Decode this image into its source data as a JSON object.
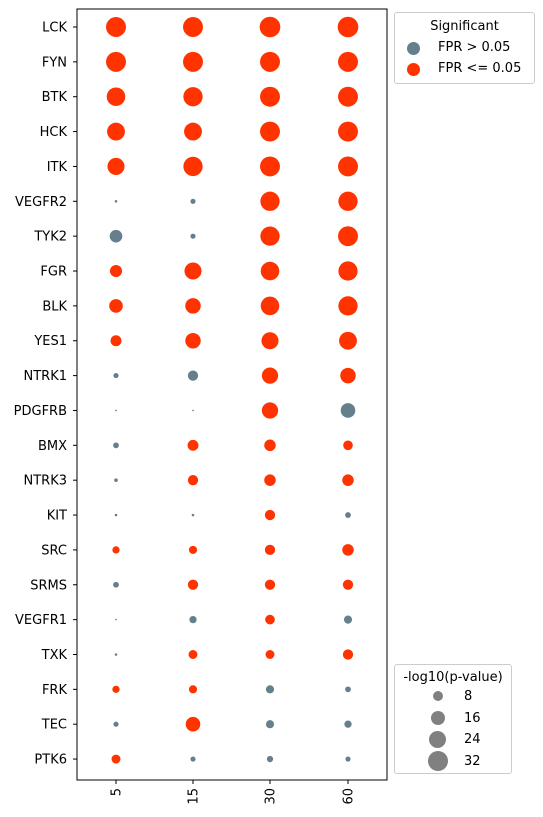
{
  "chart_data": {
    "type": "scatter",
    "title": "",
    "xlabel": "",
    "ylabel": "",
    "x_categories": [
      "5",
      "15",
      "30",
      "60"
    ],
    "y_categories": [
      "LCK",
      "FYN",
      "BTK",
      "HCK",
      "ITK",
      "VEGFR2",
      "TYK2",
      "FGR",
      "BLK",
      "YES1",
      "NTRK1",
      "PDGFRB",
      "BMX",
      "NTRK3",
      "KIT",
      "SRC",
      "SRMS",
      "VEGFR1",
      "TXK",
      "FRK",
      "TEC",
      "PTK6"
    ],
    "size_variable": "-log10(p-value)",
    "color_variable": "Significant",
    "colors": {
      "significant": "#ff3300",
      "not_significant": "#657f8c"
    },
    "points": [
      {
        "y": "LCK",
        "x": "5",
        "size": 30,
        "sig": true
      },
      {
        "y": "LCK",
        "x": "15",
        "size": 30,
        "sig": true
      },
      {
        "y": "LCK",
        "x": "30",
        "size": 32,
        "sig": true
      },
      {
        "y": "LCK",
        "x": "60",
        "size": 32,
        "sig": true
      },
      {
        "y": "FYN",
        "x": "5",
        "size": 30,
        "sig": true
      },
      {
        "y": "FYN",
        "x": "15",
        "size": 30,
        "sig": true
      },
      {
        "y": "FYN",
        "x": "30",
        "size": 30,
        "sig": true
      },
      {
        "y": "FYN",
        "x": "60",
        "size": 30,
        "sig": true
      },
      {
        "y": "BTK",
        "x": "5",
        "size": 26,
        "sig": true
      },
      {
        "y": "BTK",
        "x": "15",
        "size": 28,
        "sig": true
      },
      {
        "y": "BTK",
        "x": "30",
        "size": 30,
        "sig": true
      },
      {
        "y": "BTK",
        "x": "60",
        "size": 30,
        "sig": true
      },
      {
        "y": "HCK",
        "x": "5",
        "size": 24,
        "sig": true
      },
      {
        "y": "HCK",
        "x": "15",
        "size": 24,
        "sig": true
      },
      {
        "y": "HCK",
        "x": "30",
        "size": 30,
        "sig": true
      },
      {
        "y": "HCK",
        "x": "60",
        "size": 30,
        "sig": true
      },
      {
        "y": "ITK",
        "x": "5",
        "size": 22,
        "sig": true
      },
      {
        "y": "ITK",
        "x": "15",
        "size": 28,
        "sig": true
      },
      {
        "y": "ITK",
        "x": "30",
        "size": 30,
        "sig": true
      },
      {
        "y": "ITK",
        "x": "60",
        "size": 30,
        "sig": true
      },
      {
        "y": "VEGFR2",
        "x": "5",
        "size": 0.5,
        "sig": false
      },
      {
        "y": "VEGFR2",
        "x": "15",
        "size": 2,
        "sig": false
      },
      {
        "y": "VEGFR2",
        "x": "30",
        "size": 28,
        "sig": true
      },
      {
        "y": "VEGFR2",
        "x": "60",
        "size": 28,
        "sig": true
      },
      {
        "y": "TYK2",
        "x": "5",
        "size": 12,
        "sig": false
      },
      {
        "y": "TYK2",
        "x": "15",
        "size": 2,
        "sig": false
      },
      {
        "y": "TYK2",
        "x": "30",
        "size": 28,
        "sig": true
      },
      {
        "y": "TYK2",
        "x": "60",
        "size": 30,
        "sig": true
      },
      {
        "y": "FGR",
        "x": "5",
        "size": 11,
        "sig": true
      },
      {
        "y": "FGR",
        "x": "15",
        "size": 22,
        "sig": true
      },
      {
        "y": "FGR",
        "x": "30",
        "size": 26,
        "sig": true
      },
      {
        "y": "FGR",
        "x": "60",
        "size": 28,
        "sig": true
      },
      {
        "y": "BLK",
        "x": "5",
        "size": 14,
        "sig": true
      },
      {
        "y": "BLK",
        "x": "15",
        "size": 18,
        "sig": true
      },
      {
        "y": "BLK",
        "x": "30",
        "size": 26,
        "sig": true
      },
      {
        "y": "BLK",
        "x": "60",
        "size": 28,
        "sig": true
      },
      {
        "y": "YES1",
        "x": "5",
        "size": 9,
        "sig": true
      },
      {
        "y": "YES1",
        "x": "15",
        "size": 18,
        "sig": true
      },
      {
        "y": "YES1",
        "x": "30",
        "size": 22,
        "sig": true
      },
      {
        "y": "YES1",
        "x": "60",
        "size": 24,
        "sig": true
      },
      {
        "y": "NTRK1",
        "x": "5",
        "size": 2,
        "sig": false
      },
      {
        "y": "NTRK1",
        "x": "15",
        "size": 8,
        "sig": false
      },
      {
        "y": "NTRK1",
        "x": "30",
        "size": 20,
        "sig": true
      },
      {
        "y": "NTRK1",
        "x": "60",
        "size": 18,
        "sig": true
      },
      {
        "y": "PDGFRB",
        "x": "5",
        "size": 0.2,
        "sig": false
      },
      {
        "y": "PDGFRB",
        "x": "15",
        "size": 0.2,
        "sig": false
      },
      {
        "y": "PDGFRB",
        "x": "30",
        "size": 20,
        "sig": true
      },
      {
        "y": "PDGFRB",
        "x": "60",
        "size": 16,
        "sig": false
      },
      {
        "y": "BMX",
        "x": "5",
        "size": 2.5,
        "sig": false
      },
      {
        "y": "BMX",
        "x": "15",
        "size": 9,
        "sig": true
      },
      {
        "y": "BMX",
        "x": "30",
        "size": 10,
        "sig": true
      },
      {
        "y": "BMX",
        "x": "60",
        "size": 7,
        "sig": true
      },
      {
        "y": "NTRK3",
        "x": "5",
        "size": 1,
        "sig": false
      },
      {
        "y": "NTRK3",
        "x": "15",
        "size": 8,
        "sig": true
      },
      {
        "y": "NTRK3",
        "x": "30",
        "size": 10,
        "sig": true
      },
      {
        "y": "NTRK3",
        "x": "60",
        "size": 10,
        "sig": true
      },
      {
        "y": "KIT",
        "x": "5",
        "size": 0.5,
        "sig": false
      },
      {
        "y": "KIT",
        "x": "15",
        "size": 0.5,
        "sig": false
      },
      {
        "y": "KIT",
        "x": "30",
        "size": 8,
        "sig": true
      },
      {
        "y": "KIT",
        "x": "60",
        "size": 2.5,
        "sig": false
      },
      {
        "y": "SRC",
        "x": "5",
        "size": 4,
        "sig": true
      },
      {
        "y": "SRC",
        "x": "15",
        "size": 5,
        "sig": true
      },
      {
        "y": "SRC",
        "x": "30",
        "size": 8,
        "sig": true
      },
      {
        "y": "SRC",
        "x": "60",
        "size": 10,
        "sig": true
      },
      {
        "y": "SRMS",
        "x": "5",
        "size": 2.5,
        "sig": false
      },
      {
        "y": "SRMS",
        "x": "15",
        "size": 8,
        "sig": true
      },
      {
        "y": "SRMS",
        "x": "30",
        "size": 8,
        "sig": true
      },
      {
        "y": "SRMS",
        "x": "60",
        "size": 8,
        "sig": true
      },
      {
        "y": "VEGFR1",
        "x": "5",
        "size": 0.2,
        "sig": false
      },
      {
        "y": "VEGFR1",
        "x": "15",
        "size": 4,
        "sig": false
      },
      {
        "y": "VEGFR1",
        "x": "30",
        "size": 7,
        "sig": true
      },
      {
        "y": "VEGFR1",
        "x": "60",
        "size": 5,
        "sig": false
      },
      {
        "y": "TXK",
        "x": "5",
        "size": 0.5,
        "sig": false
      },
      {
        "y": "TXK",
        "x": "15",
        "size": 6,
        "sig": true
      },
      {
        "y": "TXK",
        "x": "30",
        "size": 6,
        "sig": true
      },
      {
        "y": "TXK",
        "x": "60",
        "size": 8,
        "sig": true
      },
      {
        "y": "FRK",
        "x": "5",
        "size": 4,
        "sig": true
      },
      {
        "y": "FRK",
        "x": "15",
        "size": 5,
        "sig": true
      },
      {
        "y": "FRK",
        "x": "30",
        "size": 5,
        "sig": false
      },
      {
        "y": "FRK",
        "x": "60",
        "size": 2.5,
        "sig": false
      },
      {
        "y": "TEC",
        "x": "5",
        "size": 2,
        "sig": false
      },
      {
        "y": "TEC",
        "x": "15",
        "size": 16,
        "sig": true
      },
      {
        "y": "TEC",
        "x": "30",
        "size": 5,
        "sig": false
      },
      {
        "y": "TEC",
        "x": "60",
        "size": 4,
        "sig": false
      },
      {
        "y": "PTK6",
        "x": "5",
        "size": 6,
        "sig": true
      },
      {
        "y": "PTK6",
        "x": "15",
        "size": 2,
        "sig": false
      },
      {
        "y": "PTK6",
        "x": "30",
        "size": 3,
        "sig": false
      },
      {
        "y": "PTK6",
        "x": "60",
        "size": 2,
        "sig": false
      }
    ],
    "legend_color": {
      "title": "Significant",
      "position": "upper-right-outside",
      "entries": [
        {
          "label": "FPR > 0.05",
          "color": "#657f8c"
        },
        {
          "label": "FPR <= 0.05",
          "color": "#ff3300"
        }
      ]
    },
    "legend_size": {
      "title": "-log10(p-value)",
      "position": "lower-right-outside",
      "color": "#808080",
      "entries": [
        {
          "label": "8",
          "value": 8
        },
        {
          "label": "16",
          "value": 16
        },
        {
          "label": "24",
          "value": 24
        },
        {
          "label": "32",
          "value": 32
        }
      ]
    }
  }
}
